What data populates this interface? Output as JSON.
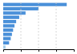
{
  "chart_data": {
    "type": "bar",
    "orientation": "horizontal",
    "categories": [
      null,
      null,
      null,
      null,
      null,
      null,
      null,
      null,
      null,
      null,
      null
    ],
    "values": [
      270,
      150,
      95,
      68,
      55,
      48,
      42,
      37,
      32,
      25,
      10
    ],
    "colors": [
      "#4A90D9",
      "#4A90D9",
      "#4A90D9",
      "#4A90D9",
      "#4A90D9",
      "#4A90D9",
      "#4A90D9",
      "#4A90D9",
      "#4A90D9",
      "#4A90D9",
      "#A8CDE8"
    ],
    "xlim": [
      0,
      300
    ],
    "xticks": [
      75,
      150,
      225
    ],
    "grid": true,
    "tick_labels": false
  }
}
